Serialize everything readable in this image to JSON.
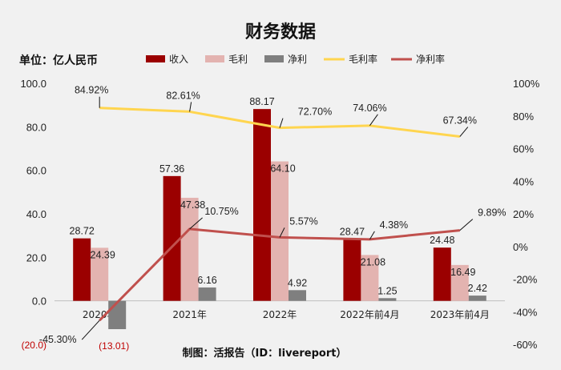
{
  "title": "财务数据",
  "unit_label": "单位：亿人民币",
  "credit": "制图：活报告（ID：livereport）",
  "colors": {
    "revenue": "#9b0000",
    "gross_profit": "#e3b3b0",
    "net_profit": "#7f7f7f",
    "gross_margin": "#ffd54f",
    "net_margin": "#c0504d",
    "negative_text": "#c00000"
  },
  "chart_data": {
    "type": "bar",
    "categories": [
      "2020年",
      "2021年",
      "2022年",
      "2022年前4月",
      "2023年前4月"
    ],
    "series": [
      {
        "name": "收入",
        "kind": "bar",
        "axis": "left",
        "values": [
          28.72,
          57.36,
          88.17,
          28.47,
          24.48
        ],
        "labels": [
          "28.72",
          "57.36",
          "88.17",
          "28.47",
          "24.48"
        ]
      },
      {
        "name": "毛利",
        "kind": "bar",
        "axis": "left",
        "values": [
          24.39,
          47.38,
          64.1,
          21.08,
          16.49
        ],
        "labels": [
          "24.39",
          "47.38",
          "64.10",
          "21.08",
          "16.49"
        ]
      },
      {
        "name": "净利",
        "kind": "bar",
        "axis": "left",
        "values": [
          -13.01,
          6.16,
          4.92,
          1.25,
          2.42
        ],
        "labels": [
          "(13.01)",
          "6.16",
          "4.92",
          "1.25",
          "2.42"
        ]
      },
      {
        "name": "毛利率",
        "kind": "line",
        "axis": "right",
        "values": [
          84.92,
          82.61,
          72.7,
          74.06,
          67.34
        ],
        "labels": [
          "84.92%",
          "82.61%",
          "72.70%",
          "74.06%",
          "67.34%"
        ]
      },
      {
        "name": "净利率",
        "kind": "line",
        "axis": "right",
        "values": [
          -45.3,
          10.75,
          5.57,
          4.38,
          9.89
        ],
        "labels": [
          "-45.30%",
          "10.75%",
          "5.57%",
          "4.38%",
          "9.89%"
        ]
      }
    ],
    "y_left": {
      "range": [
        -20,
        100
      ],
      "ticks": [
        100,
        80,
        60,
        40,
        20,
        0,
        -20
      ],
      "tick_labels": [
        "100.0",
        "80.0",
        "60.0",
        "40.0",
        "20.0",
        "0.0",
        "(20.0)"
      ]
    },
    "y_right": {
      "range": [
        -60,
        100
      ],
      "ticks": [
        100,
        80,
        60,
        40,
        20,
        0,
        -20,
        -40,
        -60
      ],
      "tick_labels": [
        "100%",
        "80%",
        "60%",
        "40%",
        "20%",
        "0%",
        "-20%",
        "-40%",
        "-60%"
      ]
    },
    "grid": false,
    "legend_position": "top"
  }
}
